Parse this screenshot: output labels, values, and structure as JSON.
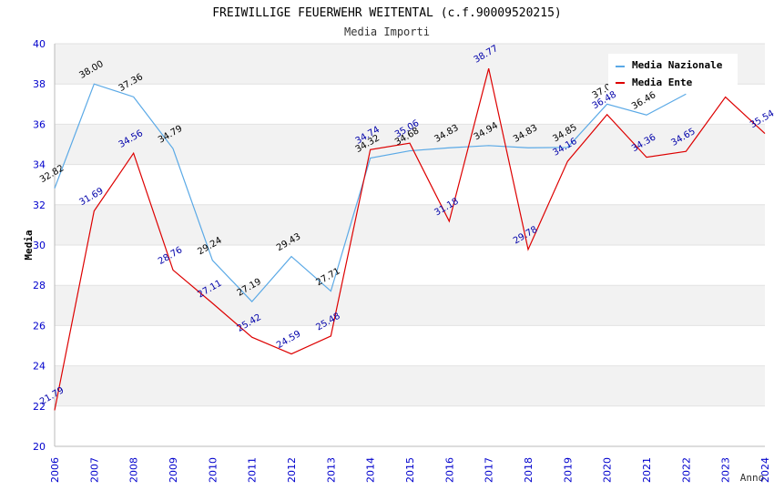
{
  "chart_data": {
    "type": "line",
    "title": "FREIWILLIGE FEUERWEHR WEITENTAL (c.f.90009520215)",
    "subtitle": "Media Importi",
    "xlabel": "Anno",
    "ylabel": "Media",
    "ylim": [
      20,
      40
    ],
    "yticks": [
      "20",
      "22",
      "24",
      "26",
      "28",
      "30",
      "32",
      "34",
      "36",
      "38",
      "40"
    ],
    "x": [
      "2006",
      "2007",
      "2008",
      "2009",
      "2010",
      "2011",
      "2012",
      "2013",
      "2014",
      "2015",
      "2016",
      "2017",
      "2018",
      "2019",
      "2020",
      "2021",
      "2022",
      "2023",
      "2024"
    ],
    "series": [
      {
        "name": "Media Nazionale",
        "color": "#5aa9e6",
        "values": [
          32.82,
          38.0,
          37.36,
          34.79,
          29.24,
          27.19,
          29.43,
          27.71,
          34.32,
          34.68,
          34.83,
          34.94,
          34.83,
          34.85,
          37.0,
          36.46,
          37.5,
          null,
          null
        ],
        "labels": [
          "32.82",
          "38.00",
          "37.36",
          "34.79",
          "29.24",
          "27.19",
          "29.43",
          "27.71",
          "34.32",
          "34.68",
          "34.83",
          "34.94",
          "34.83",
          "34.85",
          "37.0",
          "36.46",
          "",
          "",
          ""
        ]
      },
      {
        "name": "Media Ente",
        "color": "#dd0000",
        "values": [
          21.79,
          31.69,
          34.56,
          28.76,
          27.11,
          25.42,
          24.59,
          25.48,
          34.74,
          35.06,
          31.18,
          38.77,
          29.78,
          34.16,
          36.48,
          34.36,
          34.65,
          37.35,
          35.54
        ],
        "labels": [
          "21.79",
          "31.69",
          "34.56",
          "28.76",
          "27.11",
          "25.42",
          "24.59",
          "25.48",
          "34.74",
          "35.06",
          "31.18",
          "38.77",
          "29.78",
          "34.16",
          "36.48",
          "34.36",
          "34.65",
          "",
          "35.54"
        ]
      }
    ],
    "grid": true,
    "legend": "top-right"
  }
}
